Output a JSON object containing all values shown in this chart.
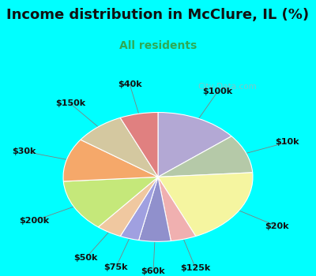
{
  "title": "Income distribution in McClure, IL (%)",
  "subtitle": "All residents",
  "background_top": "#00FFFF",
  "background_chart_color": "#d8f0e8",
  "watermark": "City-Data.com",
  "segments": [
    {
      "label": "$100k",
      "value": 13,
      "color": "#b3a8d4"
    },
    {
      "label": "$10k",
      "value": 9,
      "color": "#b5c9a8"
    },
    {
      "label": "$20k",
      "value": 18,
      "color": "#f5f5a0"
    },
    {
      "label": "$125k",
      "value": 4,
      "color": "#f0b0b0"
    },
    {
      "label": "$60k",
      "value": 5,
      "color": "#9090cc"
    },
    {
      "label": "$75k",
      "value": 3,
      "color": "#a0a0e0"
    },
    {
      "label": "$50k",
      "value": 4,
      "color": "#f0c8a0"
    },
    {
      "label": "$200k",
      "value": 12,
      "color": "#c5e87a"
    },
    {
      "label": "$30k",
      "value": 10,
      "color": "#f5a86a"
    },
    {
      "label": "$150k",
      "value": 8,
      "color": "#d4c8a0"
    },
    {
      "label": "$40k",
      "value": 6,
      "color": "#e08080"
    }
  ],
  "label_fontsize": 8,
  "title_fontsize": 13,
  "subtitle_fontsize": 10,
  "title_color": "#111111",
  "subtitle_color": "#2eaa55"
}
